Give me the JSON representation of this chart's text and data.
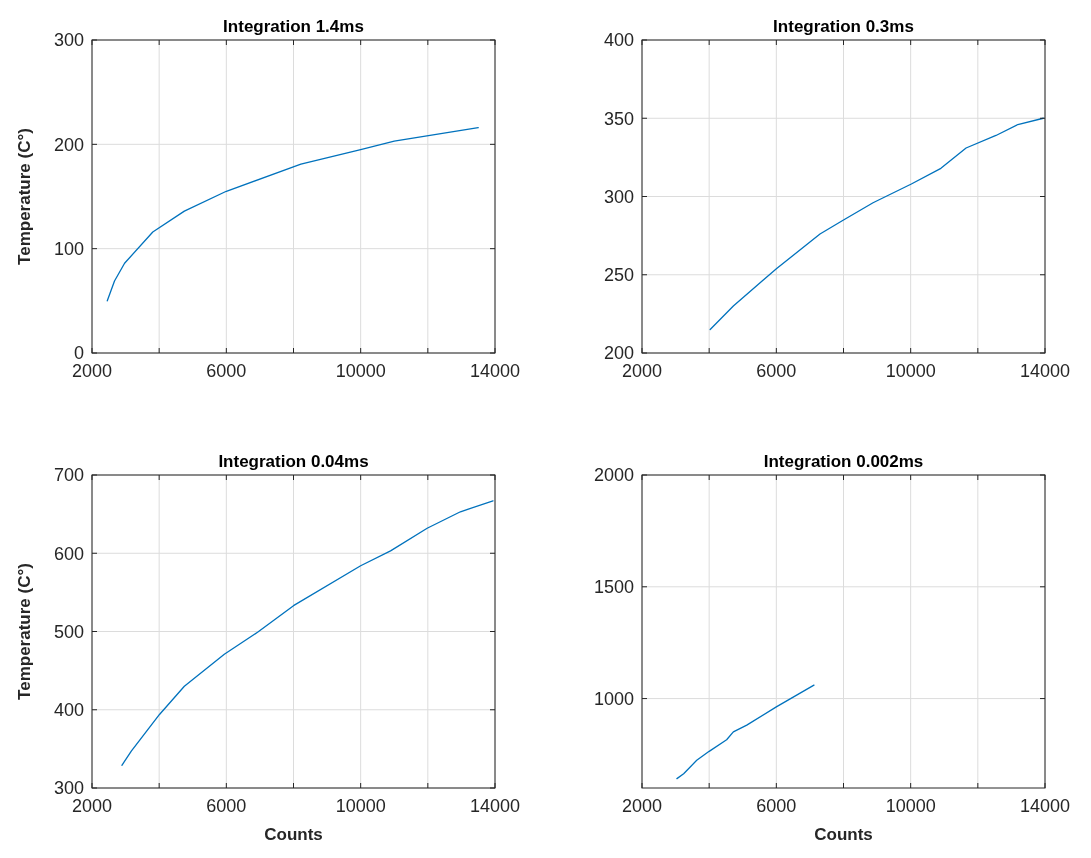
{
  "chart_data": [
    {
      "type": "line",
      "title": "Integration 1.4ms",
      "ylabel": "Temperature (C°)",
      "x": [
        2455,
        2670,
        2970,
        3810,
        4750,
        6000,
        8220,
        10000,
        11000,
        13500
      ],
      "series": [
        {
          "color": "#0072bd",
          "values": [
            50,
            69,
            86,
            116,
            136,
            155,
            181,
            195,
            203,
            216
          ]
        }
      ],
      "xlim": [
        2000,
        14000
      ],
      "xticks": [
        2000,
        {
          "value": 4000,
          "label": null
        },
        6000,
        {
          "value": 8000,
          "label": null
        },
        10000,
        {
          "value": 12000,
          "label": null
        },
        14000
      ],
      "ylim": [
        0,
        300
      ],
      "yticks": [
        0,
        100,
        200,
        300
      ],
      "grid": true,
      "tick_labels": true
    },
    {
      "type": "line",
      "title": "Integration 0.3ms",
      "x": [
        4030,
        4720,
        6010,
        7300,
        8000,
        8880,
        10020,
        10900,
        11650,
        12540,
        13190,
        13950
      ],
      "series": [
        {
          "color": "#0072bd",
          "values": [
            215,
            230,
            254,
            276,
            285,
            296,
            308,
            318,
            331,
            339,
            346,
            350
          ]
        }
      ],
      "xlim": [
        2000,
        14000
      ],
      "xticks": [
        2000,
        {
          "value": 4000,
          "label": null
        },
        6000,
        {
          "value": 8000,
          "label": null
        },
        10000,
        {
          "value": 12000,
          "label": null
        },
        14000
      ],
      "ylim": [
        200,
        400
      ],
      "yticks": [
        200,
        250,
        300,
        350,
        400
      ],
      "grid": true,
      "tick_labels": true
    },
    {
      "type": "line",
      "title": "Integration 0.04ms",
      "ylabel": "Temperature (C°)",
      "xlabel": "Counts",
      "x": [
        2890,
        3170,
        4010,
        4750,
        5940,
        6930,
        8000,
        10000,
        10890,
        11980,
        12970,
        13940
      ],
      "series": [
        {
          "color": "#0072bd",
          "values": [
            329,
            347,
            394,
            430,
            471,
            499,
            533,
            584,
            603,
            632,
            653,
            667
          ]
        }
      ],
      "xlim": [
        2000,
        14000
      ],
      "xticks": [
        2000,
        {
          "value": 4000,
          "label": null
        },
        6000,
        {
          "value": 8000,
          "label": null
        },
        10000,
        {
          "value": 12000,
          "label": null
        },
        14000
      ],
      "ylim": [
        300,
        700
      ],
      "yticks": [
        300,
        400,
        500,
        600,
        700
      ],
      "grid": true,
      "tick_labels": true
    },
    {
      "type": "line",
      "title": "Integration 0.002ms",
      "xlabel": "Counts",
      "x": [
        3040,
        3240,
        3630,
        4000,
        4520,
        4720,
        5120,
        6000,
        7120
      ],
      "series": [
        {
          "color": "#0072bd",
          "values": [
            642,
            664,
            724,
            764,
            816,
            851,
            881,
            963,
            1060
          ]
        }
      ],
      "xlim": [
        2000,
        14000
      ],
      "xticks": [
        2000,
        {
          "value": 4000,
          "label": null
        },
        6000,
        {
          "value": 8000,
          "label": null
        },
        10000,
        {
          "value": 12000,
          "label": null
        },
        14000
      ],
      "ylim": [
        600,
        2000
      ],
      "yticks": [
        1000,
        1500,
        2000
      ],
      "grid": true,
      "tick_labels": true
    }
  ]
}
